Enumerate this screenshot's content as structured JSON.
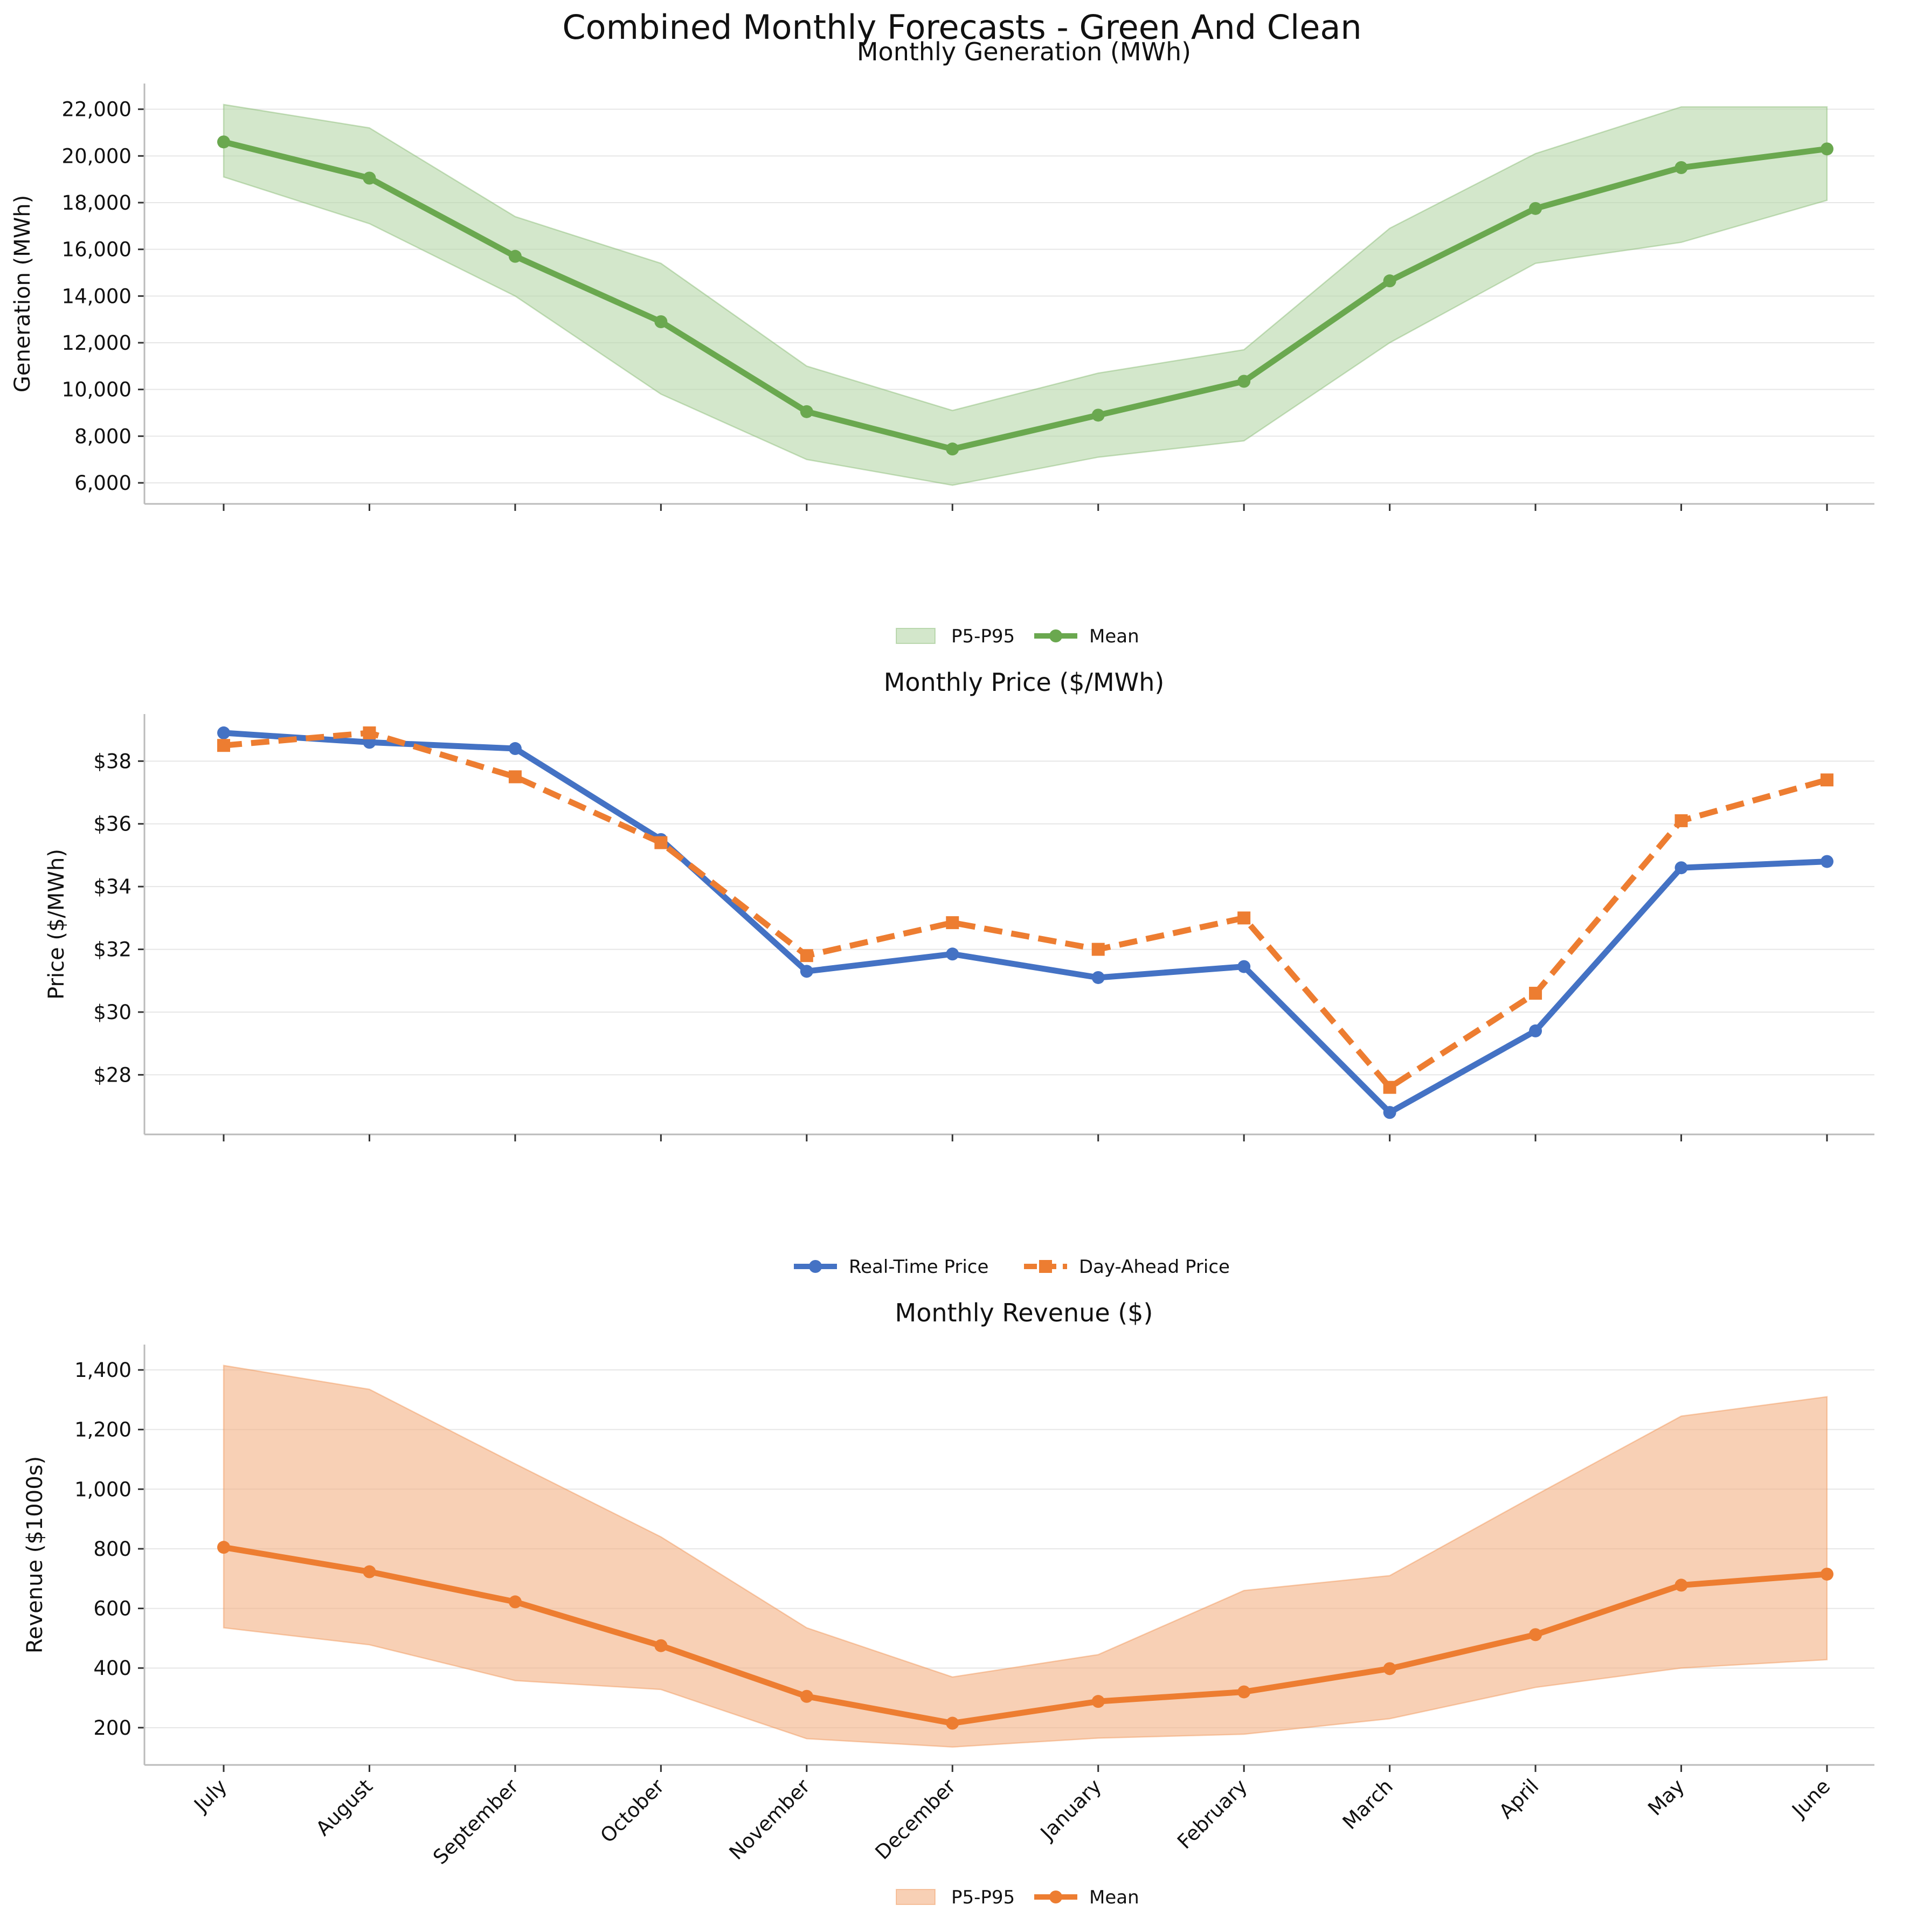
{
  "figure_title": "Combined Monthly Forecasts - Green And Clean",
  "colors": {
    "generation": "#6aa84f",
    "generation_band": "#b6d7a8",
    "real_time": "#4472c4",
    "day_ahead": "#ed7d31",
    "revenue": "#ed7d31",
    "revenue_band": "#f4b183",
    "grid": "#e6e6e6",
    "axis": "#bbbbbb"
  },
  "chart_data": [
    {
      "type": "line",
      "title": "Monthly Generation (MWh)",
      "ylabel": "Generation (MWh)",
      "xlabel": "",
      "categories": [
        "July",
        "August",
        "September",
        "October",
        "November",
        "December",
        "January",
        "February",
        "March",
        "April",
        "May",
        "June"
      ],
      "ylim": [
        5100,
        23100
      ],
      "yticks": [
        6000,
        8000,
        10000,
        12000,
        14000,
        16000,
        18000,
        20000,
        22000
      ],
      "ytick_labels": [
        "6,000",
        "8,000",
        "10,000",
        "12,000",
        "14,000",
        "16,000",
        "18,000",
        "20,000",
        "22,000"
      ],
      "grid": "horizontal",
      "legend_position": "bottom-center",
      "band": {
        "name": "P5-P95",
        "lower": [
          19100,
          17100,
          14000,
          9800,
          7000,
          5900,
          7100,
          7800,
          12000,
          15400,
          16300,
          18100
        ],
        "upper": [
          22200,
          21200,
          17400,
          15400,
          11000,
          9100,
          10700,
          11700,
          16900,
          20100,
          22100,
          22100
        ]
      },
      "series": [
        {
          "name": "Mean",
          "style": "solid-circle",
          "values": [
            20600,
            19050,
            15700,
            12900,
            9050,
            7450,
            8900,
            10350,
            14650,
            17750,
            19500,
            20300
          ]
        }
      ]
    },
    {
      "type": "line",
      "title": "Monthly Price ($/MWh)",
      "ylabel": "Price ($/MWh)",
      "xlabel": "",
      "categories": [
        "July",
        "August",
        "September",
        "October",
        "November",
        "December",
        "January",
        "February",
        "March",
        "April",
        "May",
        "June"
      ],
      "ylim": [
        26.1,
        39.5
      ],
      "yticks": [
        28,
        30,
        32,
        34,
        36,
        38
      ],
      "ytick_labels": [
        "$28",
        "$30",
        "$32",
        "$34",
        "$36",
        "$38"
      ],
      "grid": "horizontal",
      "legend_position": "bottom-center",
      "series": [
        {
          "name": "Real-Time Price",
          "style": "solid-circle",
          "values": [
            38.9,
            38.6,
            38.4,
            35.5,
            31.3,
            31.85,
            31.1,
            31.45,
            26.8,
            29.4,
            34.6,
            34.8
          ]
        },
        {
          "name": "Day-Ahead Price",
          "style": "dashed-square",
          "values": [
            38.5,
            38.9,
            37.5,
            35.4,
            31.8,
            32.85,
            32.0,
            33.0,
            27.6,
            30.6,
            36.1,
            37.4
          ]
        }
      ]
    },
    {
      "type": "line",
      "title": "Monthly Revenue ($)",
      "ylabel": "Revenue ($1000s)",
      "xlabel": "",
      "categories": [
        "July",
        "August",
        "September",
        "October",
        "November",
        "December",
        "January",
        "February",
        "March",
        "April",
        "May",
        "June"
      ],
      "ylim": [
        75,
        1485
      ],
      "yticks": [
        200,
        400,
        600,
        800,
        1000,
        1200,
        1400
      ],
      "ytick_labels": [
        "200",
        "400",
        "600",
        "800",
        "1,000",
        "1,200",
        "1,400"
      ],
      "grid": "horizontal",
      "legend_position": "bottom-center",
      "band": {
        "name": "P5-P95",
        "lower": [
          535,
          478,
          358,
          328,
          163,
          135,
          165,
          178,
          230,
          335,
          400,
          428
        ],
        "upper": [
          1415,
          1335,
          1085,
          840,
          535,
          370,
          445,
          660,
          710,
          980,
          1245,
          1310
        ]
      },
      "series": [
        {
          "name": "Mean",
          "style": "solid-circle",
          "values": [
            805,
            723,
            622,
            475,
            305,
            215,
            288,
            320,
            398,
            512,
            678,
            715
          ]
        }
      ]
    }
  ]
}
